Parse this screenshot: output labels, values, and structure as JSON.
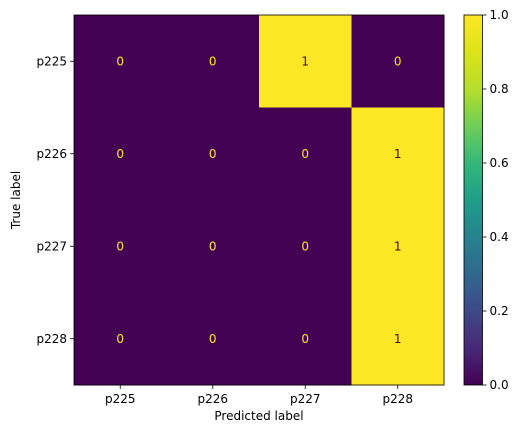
{
  "chart_data": {
    "type": "heatmap",
    "title": "",
    "xlabel": "Predicted label",
    "ylabel": "True label",
    "x_categories": [
      "p225",
      "p226",
      "p227",
      "p228"
    ],
    "y_categories": [
      "p225",
      "p226",
      "p227",
      "p228"
    ],
    "values": [
      [
        0,
        0,
        1,
        0
      ],
      [
        0,
        0,
        0,
        1
      ],
      [
        0,
        0,
        0,
        1
      ],
      [
        0,
        0,
        0,
        1
      ]
    ],
    "colormap": "viridis",
    "colors": {
      "low": "#440154",
      "high": "#fde725",
      "text_on_low": "#fde725",
      "text_on_high": "#440154"
    },
    "colorbar": {
      "range": [
        0.0,
        1.0
      ],
      "ticks": [
        "0.0",
        "0.2",
        "0.4",
        "0.6",
        "0.8",
        "1.0"
      ]
    },
    "grid": false
  }
}
